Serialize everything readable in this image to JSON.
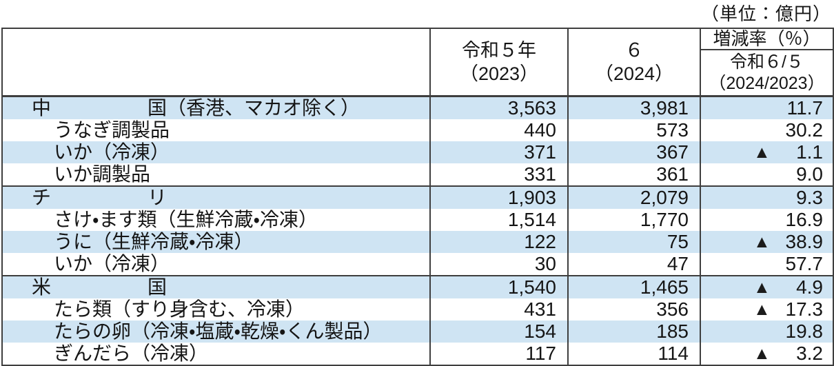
{
  "unit_label": "（単位：億円）",
  "icons": {
    "decrease_triangle": "▲"
  },
  "colors": {
    "band_blue": "#cfe4f3",
    "border_dark": "#3e3e3e",
    "text": "#151515"
  },
  "table": {
    "headers": {
      "item": "",
      "y2023_line1": "令和５年",
      "y2023_line2": "（2023）",
      "y2024_line1": "６",
      "y2024_line2": "（2024）",
      "rate_title": "増減率（％）",
      "rate_sub_line1": "令和６/５",
      "rate_sub_line2": "（2024/2023）"
    },
    "rows": [
      {
        "name": "中　　　　　国（香港、マカオ除く）",
        "level": "country",
        "group_start": false,
        "v2023": "3,563",
        "v2024": "3,981",
        "rate": "11.7",
        "negative": false
      },
      {
        "name": "うなぎ調製品",
        "level": "item",
        "group_start": false,
        "v2023": "440",
        "v2024": "573",
        "rate": "30.2",
        "negative": false
      },
      {
        "name": "いか（冷凍）",
        "level": "item",
        "group_start": false,
        "v2023": "371",
        "v2024": "367",
        "rate": "1.1",
        "negative": true
      },
      {
        "name": "いか調製品",
        "level": "item",
        "group_start": false,
        "v2023": "331",
        "v2024": "361",
        "rate": "9.0",
        "negative": false
      },
      {
        "name": "チ　　　　　リ",
        "level": "country",
        "group_start": true,
        "v2023": "1,903",
        "v2024": "2,079",
        "rate": "9.3",
        "negative": false
      },
      {
        "name": "さけ・ます類（生鮮冷蔵・冷凍）",
        "level": "item",
        "group_start": false,
        "v2023": "1,514",
        "v2024": "1,770",
        "rate": "16.9",
        "negative": false
      },
      {
        "name": "うに（生鮮冷蔵・冷凍）",
        "level": "item",
        "group_start": false,
        "v2023": "122",
        "v2024": "75",
        "rate": "38.9",
        "negative": true
      },
      {
        "name": "いか（冷凍）",
        "level": "item",
        "group_start": false,
        "v2023": "30",
        "v2024": "47",
        "rate": "57.7",
        "negative": false
      },
      {
        "name": "米　　　　　国",
        "level": "country",
        "group_start": true,
        "v2023": "1,540",
        "v2024": "1,465",
        "rate": "4.9",
        "negative": true
      },
      {
        "name": "たら類（すり身含む、冷凍）",
        "level": "item",
        "group_start": false,
        "v2023": "431",
        "v2024": "356",
        "rate": "17.3",
        "negative": true
      },
      {
        "name": "たらの卵（冷凍・塩蔵・乾燥・くん製品）",
        "level": "item",
        "group_start": false,
        "v2023": "154",
        "v2024": "185",
        "rate": "19.8",
        "negative": false
      },
      {
        "name": "ぎんだら（冷凍）",
        "level": "item",
        "group_start": false,
        "v2023": "117",
        "v2024": "114",
        "rate": "3.2",
        "negative": true
      }
    ]
  }
}
